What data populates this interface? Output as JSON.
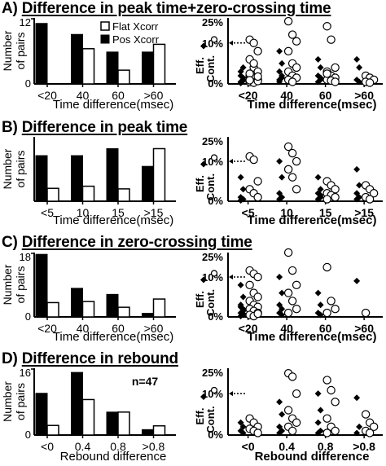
{
  "panels": [
    {
      "id": "A",
      "letter": "A)",
      "title": "Difference in peak time+zero-crossing time",
      "bar": {
        "type": "bar",
        "ylabel": [
          "Number",
          "of pairs"
        ],
        "yticks": [
          "0",
          "12"
        ],
        "ylim": [
          0,
          12
        ],
        "categories": [
          "<20",
          "40",
          "60",
          ">60"
        ],
        "xlabel": "Time difference(msec)",
        "series": [
          {
            "name": "Pos Xcorr",
            "values": [
              11,
              9,
              5.8,
              5.8
            ]
          },
          {
            "name": "Flat Xcorr",
            "values": [
              0,
              6.4,
              2.5,
              7.2
            ]
          }
        ],
        "legend": [
          "Flat Xcorr",
          "Pos Xcorr"
        ]
      },
      "scatter": {
        "type": "scatter",
        "ylabel_left": "Eff.",
        "ylabel_right": "Cont.",
        "yticks": [
          "0%",
          "10%",
          "25%"
        ],
        "categories": [
          "<20",
          "40",
          "60",
          ">60"
        ],
        "xlabel": "Time difference(msec)",
        "filled": [
          [
            0.5,
            1,
            2,
            1.5,
            3,
            4,
            0.2,
            0.8
          ],
          [
            8,
            5,
            3,
            2,
            1,
            1.5,
            0.5
          ],
          [
            6,
            4,
            2,
            1,
            0.5,
            1.5
          ],
          [
            6,
            4,
            1,
            0.5
          ]
        ],
        "open": [
          [
            12,
            10,
            8,
            6,
            4,
            3,
            2,
            1.5,
            1,
            0.5,
            0.3,
            0.7,
            2.5,
            5,
            1.8,
            0.9
          ],
          [
            23,
            15,
            11,
            8,
            5,
            4,
            3,
            2,
            1.5,
            1,
            0.5
          ],
          [
            20,
            12,
            4,
            3,
            2,
            1.5,
            1,
            0.8,
            0.5,
            2.5
          ],
          [
            2,
            1.5,
            1,
            0.5,
            0.3
          ]
        ]
      }
    },
    {
      "id": "B",
      "letter": "B)",
      "title": "Difference in peak time",
      "bar": {
        "type": "bar",
        "ylabel": [
          "Number",
          "of pairs"
        ],
        "yticks": [],
        "ylim": [
          0,
          12
        ],
        "categories": [
          "<5",
          "10",
          "15",
          ">15"
        ],
        "xlabel": "Time difference(msec)",
        "series": [
          {
            "name": "Pos Xcorr",
            "values": [
              8.5,
              8.5,
              9.8,
              6.5
            ]
          },
          {
            "name": "Flat Xcorr",
            "values": [
              2.4,
              2.8,
              2.3,
              9.8
            ]
          }
        ]
      },
      "scatter": {
        "type": "scatter",
        "ylabel_left": "Eff.",
        "ylabel_right": "Cont.",
        "yticks": [
          "0%",
          "10%",
          "25%"
        ],
        "categories": [
          "<5",
          "10",
          "15",
          ">15"
        ],
        "xlabel": "Time difference(msec)",
        "filled": [
          [
            6,
            3,
            1,
            0.5,
            0.2
          ],
          [
            10,
            6,
            2,
            1,
            0.5
          ],
          [
            6,
            3,
            2,
            1,
            0.5,
            1.5
          ],
          [
            8,
            4,
            2,
            1,
            0.5
          ]
        ],
        "open": [
          [
            13,
            11,
            5,
            3,
            2,
            1
          ],
          [
            19,
            15,
            10,
            8,
            6,
            3
          ],
          [
            5,
            4,
            3,
            2,
            1.5,
            1,
            0.5
          ],
          [
            4,
            3,
            2,
            1,
            0.5
          ]
        ]
      }
    },
    {
      "id": "C",
      "letter": "C)",
      "title": "Difference in zero-crossing time",
      "bar": {
        "type": "bar",
        "ylabel": [
          "Number",
          "of pairs"
        ],
        "yticks": [
          "0",
          "18"
        ],
        "ylim": [
          0,
          18
        ],
        "categories": [
          "<20",
          "40",
          "60",
          ">60"
        ],
        "xlabel": "Time difference(msec)",
        "series": [
          {
            "name": "Pos Xcorr",
            "values": [
              17.5,
              8,
              6.3,
              1
            ]
          },
          {
            "name": "Flat Xcorr",
            "values": [
              4,
              4.3,
              2.7,
              5
            ]
          }
        ]
      },
      "scatter": {
        "type": "scatter",
        "ylabel_left": "Eff.",
        "ylabel_right": "Cont.",
        "yticks": [
          "0%",
          "10%",
          "25%"
        ],
        "categories": [
          "<20",
          "40",
          "60",
          ">60"
        ],
        "xlabel": "Time difference(msec)",
        "filled": [
          [
            8,
            5,
            3,
            2,
            1,
            0.5,
            0.2,
            1.5,
            2.5,
            0.8
          ],
          [
            10,
            6,
            3,
            2,
            1,
            0.5
          ],
          [
            6,
            3,
            1,
            0.5
          ],
          [
            9
          ]
        ],
        "open": [
          [
            14,
            12,
            10,
            8,
            6,
            5,
            4,
            3,
            2.5,
            2,
            1.5,
            1,
            0.5,
            0.2,
            0.8
          ],
          [
            25,
            14,
            8,
            6,
            4,
            2,
            1
          ],
          [
            16,
            4,
            2,
            1
          ],
          [
            1
          ]
        ]
      }
    },
    {
      "id": "D",
      "letter": "D)",
      "title": "Difference in rebound",
      "bar": {
        "type": "bar",
        "ylabel": [
          "Number",
          "of pairs"
        ],
        "yticks": [
          "0",
          "16"
        ],
        "ylim": [
          0,
          16
        ],
        "categories": [
          "<0",
          "0.4",
          "0.8",
          ">0.8"
        ],
        "xlabel": "Rebound difference",
        "series": [
          {
            "name": "Pos Xcorr",
            "values": [
              10,
              15,
              5.5,
              1.3
            ]
          },
          {
            "name": "Flat Xcorr",
            "values": [
              2.3,
              8.5,
              5.5,
              2.2
            ]
          }
        ],
        "annotation": "n=47"
      },
      "scatter": {
        "type": "scatter",
        "ylabel_left": "Eff.",
        "ylabel_right": "Cont.",
        "yticks": [
          "0%",
          "10%",
          "25%"
        ],
        "categories": [
          "<0",
          "0.4",
          "0.8",
          ">0.8"
        ],
        "xlabel": "Rebound difference",
        "filled": [
          [
            3,
            2,
            1,
            0.5
          ],
          [
            8,
            5,
            2,
            1,
            0.5
          ],
          [
            10,
            6,
            3,
            1,
            0.5
          ],
          [
            9,
            2,
            0.5
          ]
        ],
        "open": [
          [
            4,
            3,
            2,
            1.5,
            1,
            0.5
          ],
          [
            22,
            20,
            10,
            6,
            4,
            3,
            2,
            1
          ],
          [
            18,
            12,
            8,
            4,
            2,
            1,
            0.5
          ],
          [
            5,
            3,
            2,
            1,
            0.5
          ]
        ]
      }
    }
  ],
  "colors": {
    "ink": "#000000",
    "open_fill": "#ffffff"
  }
}
